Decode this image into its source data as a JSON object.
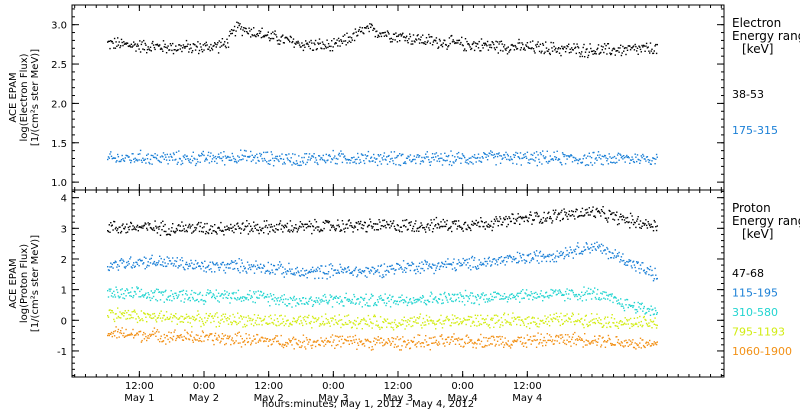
{
  "chart_data": [
    {
      "type": "scatter",
      "panel": "electron",
      "ylabel_lines": [
        "ACE EPAM",
        "log(Electron Flux)",
        "[1/(cm²s ster MeV)]"
      ],
      "ylim": [
        0.9,
        3.25
      ],
      "yticks": [
        1.0,
        1.5,
        2.0,
        2.5,
        3.0
      ],
      "ytick_labels": [
        "1.0",
        "1.5",
        "2.0",
        "2.5",
        "3.0"
      ],
      "legend_title_lines": [
        "Electron",
        "Energy ranges",
        "[keV]"
      ],
      "series": [
        {
          "name": "38-53",
          "color": "#000000",
          "x": [
            0,
            6,
            12,
            18,
            22,
            24,
            30,
            36,
            42,
            48,
            54,
            60,
            66,
            72,
            78,
            84,
            90,
            96,
            102
          ],
          "values": [
            2.77,
            2.74,
            2.72,
            2.72,
            2.76,
            2.98,
            2.86,
            2.76,
            2.73,
            2.95,
            2.86,
            2.8,
            2.76,
            2.74,
            2.72,
            2.7,
            2.68,
            2.69,
            2.7
          ]
        },
        {
          "name": "175-315",
          "color": "#1a7fd6",
          "x": [
            0,
            6,
            12,
            18,
            24,
            30,
            36,
            42,
            48,
            54,
            60,
            66,
            72,
            78,
            84,
            90,
            96,
            102
          ],
          "values": [
            1.3,
            1.32,
            1.31,
            1.31,
            1.33,
            1.31,
            1.3,
            1.32,
            1.31,
            1.31,
            1.3,
            1.31,
            1.32,
            1.31,
            1.31,
            1.3,
            1.31,
            1.31
          ]
        }
      ]
    },
    {
      "type": "scatter",
      "panel": "proton",
      "ylabel_lines": [
        "ACE EPAM",
        "log(Proton Flux)",
        "[1/(cm²s ster MeV)]"
      ],
      "ylim": [
        -1.85,
        4.25
      ],
      "yticks": [
        -1,
        0,
        1,
        2,
        3,
        4
      ],
      "ytick_labels": [
        "-1",
        "0",
        "1",
        "2",
        "3",
        "4"
      ],
      "legend_title_lines": [
        "Proton",
        "Energy ranges",
        "[keV]"
      ],
      "series": [
        {
          "name": "47-68",
          "color": "#000000",
          "x": [
            0,
            6,
            12,
            18,
            24,
            30,
            36,
            42,
            48,
            54,
            60,
            66,
            72,
            78,
            84,
            90,
            96,
            102
          ],
          "values": [
            3.05,
            3.05,
            3.03,
            3.03,
            3.05,
            3.05,
            3.05,
            3.1,
            3.1,
            3.1,
            3.12,
            3.15,
            3.2,
            3.35,
            3.45,
            3.55,
            3.3,
            3.1
          ]
        },
        {
          "name": "115-195",
          "color": "#1a7fd6",
          "x": [
            0,
            6,
            12,
            18,
            24,
            30,
            36,
            42,
            48,
            54,
            60,
            66,
            72,
            78,
            84,
            90,
            96,
            102
          ],
          "values": [
            1.8,
            1.95,
            1.9,
            1.75,
            1.8,
            1.75,
            1.55,
            1.65,
            1.6,
            1.75,
            1.8,
            1.85,
            1.95,
            2.05,
            2.2,
            2.45,
            2.0,
            1.45
          ]
        },
        {
          "name": "310-580",
          "color": "#22d4d0",
          "x": [
            0,
            6,
            12,
            18,
            24,
            30,
            36,
            42,
            48,
            54,
            60,
            66,
            72,
            78,
            84,
            90,
            96,
            102
          ],
          "values": [
            0.9,
            0.85,
            0.85,
            0.8,
            0.85,
            0.75,
            0.65,
            0.7,
            0.65,
            0.7,
            0.72,
            0.75,
            0.8,
            0.85,
            0.85,
            0.9,
            0.55,
            0.3
          ]
        },
        {
          "name": "795-1193",
          "color": "#d2ec12",
          "x": [
            0,
            6,
            12,
            18,
            24,
            30,
            36,
            42,
            48,
            54,
            60,
            66,
            72,
            78,
            84,
            90,
            96,
            102
          ],
          "values": [
            0.25,
            0.15,
            0.1,
            0.05,
            0.05,
            0.0,
            -0.05,
            0.0,
            -0.05,
            -0.05,
            0.0,
            0.0,
            0.0,
            0.0,
            0.05,
            0.05,
            -0.05,
            -0.1
          ]
        },
        {
          "name": "1060-1900",
          "color": "#f29015",
          "x": [
            0,
            6,
            12,
            18,
            24,
            30,
            36,
            42,
            48,
            54,
            60,
            66,
            72,
            78,
            84,
            90,
            96,
            102
          ],
          "values": [
            -0.4,
            -0.45,
            -0.5,
            -0.55,
            -0.6,
            -0.65,
            -0.7,
            -0.65,
            -0.7,
            -0.7,
            -0.7,
            -0.65,
            -0.65,
            -0.65,
            -0.6,
            -0.6,
            -0.7,
            -0.8
          ]
        }
      ]
    }
  ],
  "x_axis": {
    "xlim": [
      -6.5,
      114.5
    ],
    "ticks": [
      {
        "x": 6,
        "time": "12:00",
        "day": "May 1"
      },
      {
        "x": 18,
        "time": "0:00",
        "day": "May 2"
      },
      {
        "x": 30,
        "time": "12:00",
        "day": "May 2"
      },
      {
        "x": 42,
        "time": "0:00",
        "day": "May 3"
      },
      {
        "x": 54,
        "time": "12:00",
        "day": "May 3"
      },
      {
        "x": 66,
        "time": "0:00",
        "day": "May 4"
      },
      {
        "x": 78,
        "time": "12:00",
        "day": "May 4"
      }
    ],
    "xlabel": "hours:minutes, May  1, 2012 - May  4, 2012"
  }
}
